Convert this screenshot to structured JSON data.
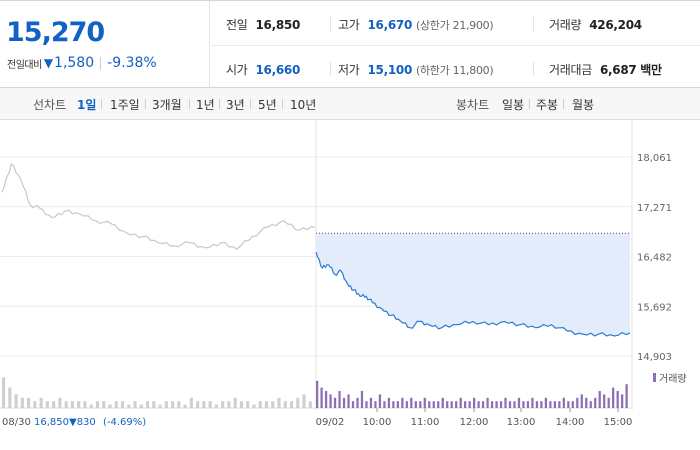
{
  "quote": {
    "current_price": "15,270",
    "change_label": "전일대비",
    "change_icon": "triangle-down-icon",
    "change_amount": "1,580",
    "change_percent": "-9.38%",
    "down_color": "#1261c4"
  },
  "stats": {
    "prev_close_label": "전일",
    "prev_close": "16,850",
    "high_label": "고가",
    "high": "16,670",
    "high_limit": "(상한가 21,900)",
    "volume_label": "거래량",
    "volume": "426,204",
    "open_label": "시가",
    "open": "16,660",
    "low_label": "저가",
    "low": "15,100",
    "low_limit": "(하한가 11,800)",
    "amount_label": "거래대금",
    "amount": "6,687 백만"
  },
  "tabs": {
    "line_chart_label": "선차트",
    "periods": [
      "1일",
      "1주일",
      "3개월",
      "1년",
      "3년",
      "5년",
      "10년"
    ],
    "active_period": "1일",
    "candle_chart_label": "봉차트",
    "candle_periods": [
      "일봉",
      "주봉",
      "월봉"
    ]
  },
  "chart_data": {
    "type": "line",
    "y_ticks": [
      "18,061",
      "17,271",
      "16,482",
      "15,692",
      "14,903"
    ],
    "ylim": [
      14903,
      18061
    ],
    "prev_close_line": 16850,
    "x_tick_labels": [
      "09/02",
      "10:00",
      "11:00",
      "12:00",
      "13:00",
      "14:00",
      "15:00"
    ],
    "volume_legend": "거래량",
    "footer_prev_date": "08/30",
    "footer_prev_price": "16,850",
    "footer_prev_change": "▼830",
    "footer_prev_pct": "(-4.69%)",
    "series": [
      {
        "day": "previous",
        "color": "#c8c8c8",
        "x": [
          0,
          3,
          6,
          9,
          12,
          16,
          20,
          25,
          30,
          35,
          40,
          45,
          50,
          55,
          60,
          65,
          70,
          75,
          80,
          85,
          90,
          95,
          100
        ],
        "values": [
          17500,
          17950,
          17700,
          17300,
          17250,
          17100,
          17200,
          17150,
          17050,
          17000,
          16850,
          16800,
          16700,
          16650,
          16700,
          16620,
          16700,
          16600,
          16800,
          16950,
          17050,
          16900,
          16950
        ]
      },
      {
        "day": "today",
        "color": "#2d7bd3",
        "x": [
          0,
          2,
          4,
          6,
          8,
          10,
          12,
          14,
          16,
          18,
          21,
          24,
          27,
          30,
          33,
          36,
          40,
          45,
          50,
          55,
          60,
          65,
          70,
          75,
          80,
          85,
          90,
          95,
          100
        ],
        "values": [
          16550,
          16300,
          16350,
          16200,
          16250,
          16050,
          15950,
          15850,
          15850,
          15750,
          15650,
          15550,
          15450,
          15350,
          15450,
          15400,
          15350,
          15400,
          15450,
          15400,
          15450,
          15400,
          15350,
          15400,
          15300,
          15250,
          15250,
          15220,
          15270
        ]
      }
    ],
    "volume_bars": {
      "previous": [
        9,
        6,
        4,
        3,
        3,
        2,
        3,
        2,
        2,
        3,
        2,
        2,
        2,
        2,
        1,
        2,
        2,
        1,
        2,
        2,
        1,
        2,
        1,
        2,
        2,
        1,
        2,
        2,
        2,
        1,
        3,
        2,
        2,
        2,
        1,
        2,
        2,
        3,
        2,
        2,
        1,
        2,
        2,
        2,
        3,
        2,
        2,
        3,
        4,
        2
      ],
      "today": [
        8,
        6,
        5,
        4,
        3,
        5,
        3,
        4,
        2,
        3,
        5,
        2,
        3,
        2,
        4,
        2,
        3,
        2,
        2,
        3,
        2,
        3,
        2,
        2,
        3,
        2,
        2,
        2,
        3,
        2,
        2,
        2,
        3,
        2,
        2,
        3,
        2,
        2,
        3,
        2,
        2,
        2,
        3,
        2,
        2,
        3,
        2,
        2,
        3,
        2,
        2,
        3,
        2,
        2,
        2,
        3,
        2,
        2,
        3,
        4,
        3,
        2,
        3,
        5,
        4,
        3,
        6,
        5,
        4,
        7
      ]
    }
  }
}
